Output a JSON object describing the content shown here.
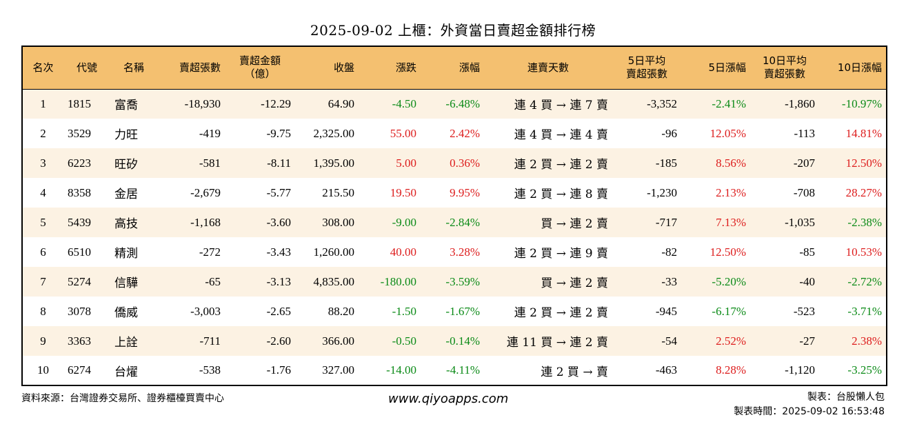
{
  "title": "2025-09-02 上櫃：外資當日賣超金額排行榜",
  "headers": [
    "名次",
    "代號",
    "名稱",
    "賣超張數",
    "賣超金額\n（億）",
    "收盤",
    "漲跌",
    "漲幅",
    "連賣天數",
    "5日平均\n賣超張數",
    "5日漲幅",
    "10日平均\n賣超張數",
    "10日漲幅"
  ],
  "rows": [
    [
      "1",
      "1815",
      "富喬",
      "-18,930",
      "-12.29",
      "64.90",
      "-4.50",
      "-6.48%",
      "連 4 買 → 連 7 賣",
      "-3,352",
      "-2.41%",
      "-1,860",
      "-10.97%"
    ],
    [
      "2",
      "3529",
      "力旺",
      "-419",
      "-9.75",
      "2,325.00",
      "55.00",
      "2.42%",
      "連 4 買 → 連 4 賣",
      "-96",
      "12.05%",
      "-113",
      "14.81%"
    ],
    [
      "3",
      "6223",
      "旺矽",
      "-581",
      "-8.11",
      "1,395.00",
      "5.00",
      "0.36%",
      "連 2 買 → 連 2 賣",
      "-185",
      "8.56%",
      "-207",
      "12.50%"
    ],
    [
      "4",
      "8358",
      "金居",
      "-2,679",
      "-5.77",
      "215.50",
      "19.50",
      "9.95%",
      "連 2 買 → 連 8 賣",
      "-1,230",
      "2.13%",
      "-708",
      "28.27%"
    ],
    [
      "5",
      "5439",
      "高技",
      "-1,168",
      "-3.60",
      "308.00",
      "-9.00",
      "-2.84%",
      "買 → 連 2 賣",
      "-717",
      "7.13%",
      "-1,035",
      "-2.38%"
    ],
    [
      "6",
      "6510",
      "精測",
      "-272",
      "-3.43",
      "1,260.00",
      "40.00",
      "3.28%",
      "連 2 買 → 連 9 賣",
      "-82",
      "12.50%",
      "-85",
      "10.53%"
    ],
    [
      "7",
      "5274",
      "信驊",
      "-65",
      "-3.13",
      "4,835.00",
      "-180.00",
      "-3.59%",
      "買 → 連 2 賣",
      "-33",
      "-5.20%",
      "-40",
      "-2.72%"
    ],
    [
      "8",
      "3078",
      "僑威",
      "-3,003",
      "-2.65",
      "88.20",
      "-1.50",
      "-1.67%",
      "連 2 買 → 連 2 賣",
      "-945",
      "-6.17%",
      "-523",
      "-3.71%"
    ],
    [
      "9",
      "3363",
      "上詮",
      "-711",
      "-2.60",
      "366.00",
      "-0.50",
      "-0.14%",
      "連 11 買 → 連 2 賣",
      "-54",
      "2.52%",
      "-27",
      "2.38%"
    ],
    [
      "10",
      "6274",
      "台燿",
      "-538",
      "-1.76",
      "327.00",
      "-14.00",
      "-4.11%",
      "連 2 買 → 賣",
      "-463",
      "8.28%",
      "-1,120",
      "-3.25%"
    ]
  ],
  "colors": {
    "header_bg": "#f4c070",
    "stripe_bg": "#fcf2e3",
    "positive": "#dd1c1c",
    "negative": "#0a8a16"
  },
  "footer": {
    "source": "資料來源：台灣證券交易所、證券櫃檯買賣中心",
    "website": "www.qiyoapps.com",
    "maker": "製表：台股懶人包",
    "made_time": "製表時間：2025-09-02 16:53:48"
  }
}
